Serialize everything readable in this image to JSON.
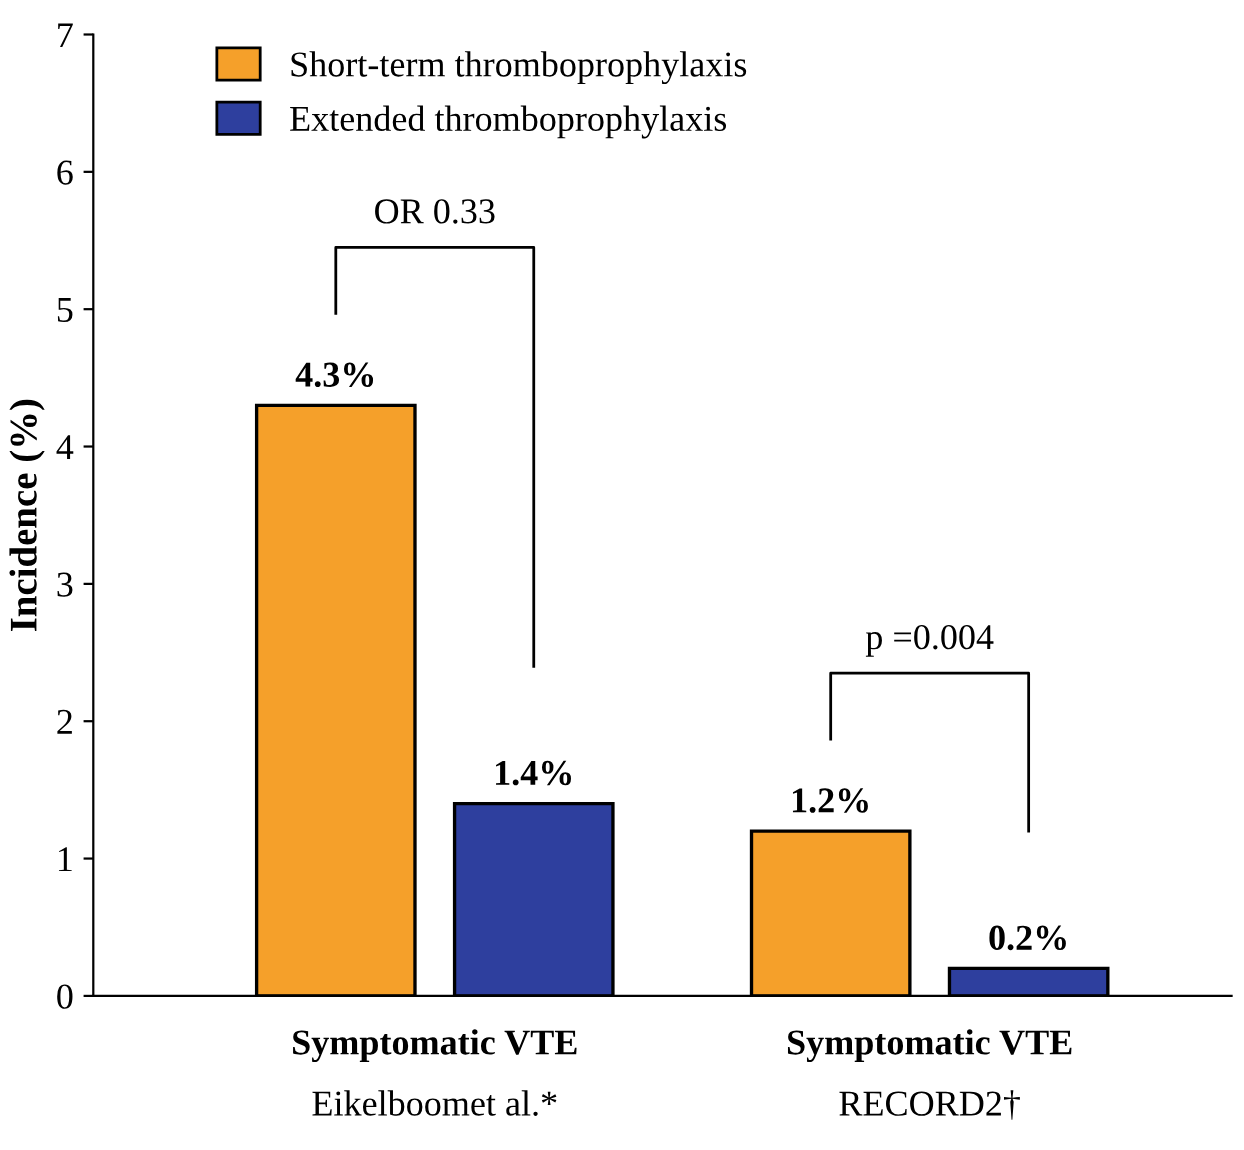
{
  "chart_data": {
    "type": "bar",
    "categories": [
      "Symptomatic VTE\nEikelboomet al.*",
      "Symptomatic VTE\nRECORD2†"
    ],
    "series": [
      {
        "name": "Short-term thromboprophylaxis",
        "color": "#f5a02a",
        "values": [
          4.3,
          1.2
        ],
        "value_labels": [
          "4.3%",
          "1.2%"
        ]
      },
      {
        "name": "Extended thromboprophylaxis",
        "color": "#2e3f9e",
        "values": [
          1.4,
          0.2
        ],
        "value_labels": [
          "1.4%",
          "0.2%"
        ]
      }
    ],
    "ylabel": "Incidence (%)",
    "ylim": [
      0,
      7
    ],
    "yticks": [
      0,
      1,
      2,
      3,
      4,
      5,
      6,
      7
    ],
    "annotations": [
      "OR 0.33",
      "p =0.004"
    ],
    "grid": false,
    "legend": "top left"
  }
}
